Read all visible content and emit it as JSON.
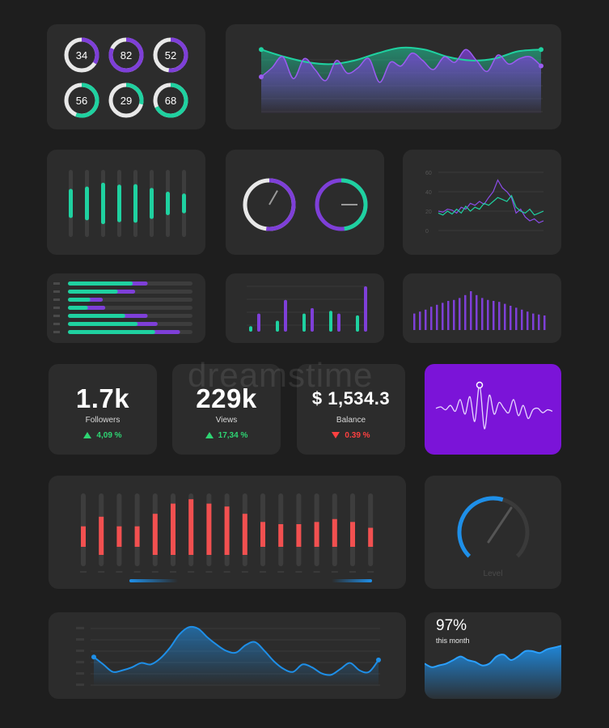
{
  "watermark": "dreamstime",
  "colors": {
    "bg": "#1e1e1e",
    "card": "#2c2c2c",
    "green": "#1fd1a0",
    "purple": "#7e3fd8",
    "red": "#f25050",
    "blue": "#1e8fe8",
    "violet_card": "#7b14d8"
  },
  "donuts": {
    "values": [
      34,
      82,
      52,
      56,
      29,
      68
    ],
    "colors": [
      "purple",
      "purple",
      "purple",
      "green",
      "green",
      "green"
    ]
  },
  "wave_top": {
    "type": "area",
    "series": [
      {
        "y": [
          70,
          62,
          56,
          54,
          58,
          66,
          72,
          70,
          62,
          58,
          60,
          68,
          70
        ]
      },
      {
        "y": [
          40,
          50,
          62,
          38,
          60,
          48,
          36,
          58,
          44,
          50,
          60,
          34,
          56,
          52,
          66,
          58,
          48,
          62,
          56,
          70,
          58,
          46,
          64,
          54,
          60,
          62,
          52
        ]
      }
    ]
  },
  "bar_pairs": {
    "type": "bar",
    "values": [
      62,
      72,
      88,
      80,
      82,
      66,
      50,
      42
    ],
    "max": 100
  },
  "rings": [
    {
      "value": 52,
      "primary": "purple",
      "secondary": "white"
    },
    {
      "value": 48,
      "primary": "green",
      "secondary": "purple"
    }
  ],
  "line_small": {
    "type": "line",
    "ylabels": [
      "60",
      "40",
      "20",
      "0"
    ],
    "series": [
      {
        "color": "purple",
        "y": [
          20,
          19,
          22,
          21,
          18,
          24,
          22,
          28,
          26,
          30,
          27,
          34,
          40,
          52,
          44,
          40,
          34,
          18,
          22,
          14,
          10,
          12,
          8,
          10
        ]
      },
      {
        "color": "green",
        "y": [
          18,
          16,
          20,
          17,
          22,
          18,
          25,
          20,
          24,
          22,
          28,
          26,
          30,
          34,
          32,
          30,
          36,
          24,
          20,
          18,
          22,
          16,
          18,
          20
        ]
      }
    ]
  },
  "hbars": {
    "type": "bar",
    "rows": [
      {
        "green": 52,
        "purple": 12
      },
      {
        "green": 40,
        "purple": 14
      },
      {
        "green": 18,
        "purple": 10
      },
      {
        "green": 16,
        "purple": 14
      },
      {
        "green": 46,
        "purple": 18
      },
      {
        "green": 56,
        "purple": 16
      },
      {
        "green": 70,
        "purple": 20
      }
    ]
  },
  "vbars_pair": {
    "type": "bar",
    "series": [
      {
        "name": "purple",
        "values": [
          40,
          70,
          52,
          40,
          100
        ]
      },
      {
        "name": "green",
        "values": [
          12,
          24,
          40,
          46,
          36
        ]
      }
    ]
  },
  "thin_bars": {
    "type": "bar",
    "values": [
      34,
      38,
      42,
      48,
      52,
      56,
      60,
      62,
      66,
      72,
      80,
      72,
      66,
      62,
      60,
      58,
      54,
      50,
      46,
      42,
      38,
      34,
      32,
      30
    ]
  },
  "stats": [
    {
      "value": "1.7k",
      "label": "Followers",
      "change": "4,09 %",
      "dir": "up"
    },
    {
      "value": "229k",
      "label": "Views",
      "change": "17,34 %",
      "dir": "up"
    },
    {
      "value": "$ 1,534.3",
      "label": "Balance",
      "change": "0.39 %",
      "dir": "down"
    }
  ],
  "pulse": {
    "y": [
      52,
      50,
      54,
      48,
      56,
      40,
      60,
      36,
      70,
      20,
      80,
      34,
      60,
      44,
      52,
      58,
      40,
      62,
      48,
      66,
      54,
      52,
      58,
      54,
      56
    ]
  },
  "red_bars": {
    "type": "bar",
    "values": [
      34,
      58,
      34,
      34,
      62,
      76,
      82,
      76,
      72,
      62,
      46,
      40,
      40,
      46,
      54,
      46,
      30
    ],
    "max": 100
  },
  "gauge": {
    "value": 56,
    "label": "Level"
  },
  "wave_bottom": {
    "type": "line",
    "y": [
      40,
      30,
      20,
      22,
      26,
      32,
      30,
      38,
      52,
      70,
      80,
      78,
      66,
      56,
      48,
      46,
      56,
      60,
      48,
      34,
      24,
      20,
      30,
      26,
      18,
      16,
      24,
      32,
      22,
      20,
      36
    ]
  },
  "percent_card": {
    "value": "97%",
    "sub": "this month",
    "y": [
      26,
      22,
      24,
      26,
      30,
      34,
      30,
      28,
      24,
      26,
      34,
      36,
      30,
      34,
      40,
      40,
      38,
      42,
      44,
      46
    ]
  }
}
